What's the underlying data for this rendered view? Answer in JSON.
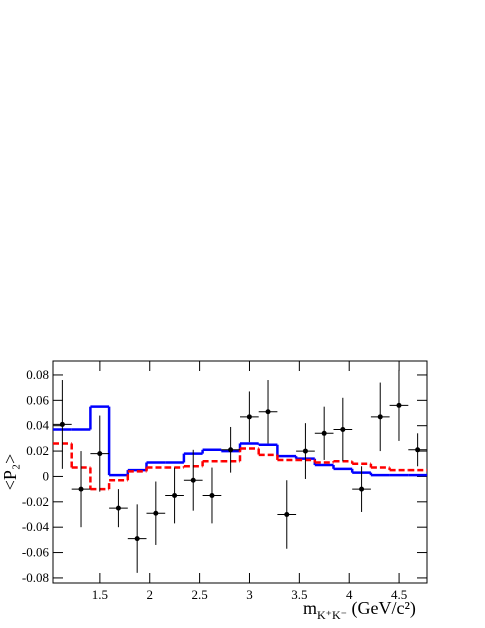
{
  "chart_data": {
    "type": "histogram-points",
    "ylabel": "<P₂>",
    "xlabel": {
      "main": "m",
      "sub": "K⁺K⁻",
      "rest": " (GeV/c²)"
    },
    "xlim": [
      1.03,
      4.78
    ],
    "ylim": [
      -0.084,
      0.091
    ],
    "xticks": [
      1.5,
      2,
      2.5,
      3,
      3.5,
      4,
      4.5
    ],
    "yticks": [
      -0.08,
      -0.06,
      -0.04,
      -0.02,
      0,
      0.02,
      0.04,
      0.06,
      0.08
    ],
    "bins": [
      1.03,
      1.2175,
      1.405,
      1.5925,
      1.78,
      1.9675,
      2.155,
      2.3425,
      2.53,
      2.7175,
      2.905,
      3.0925,
      3.28,
      3.4675,
      3.655,
      3.8425,
      4.03,
      4.2175,
      4.405,
      4.5925,
      4.78
    ],
    "series": [
      {
        "color": "#0000ff",
        "style": "solid",
        "values": [
          0.037,
          0.037,
          0.055,
          0.001,
          0.005,
          0.011,
          0.011,
          0.018,
          0.021,
          0.02,
          0.026,
          0.025,
          0.016,
          0.014,
          0.009,
          0.006,
          0.003,
          0.001,
          0.001,
          0.001
        ]
      },
      {
        "color": "#ff0000",
        "style": "dashed",
        "values": [
          0.026,
          0.007,
          -0.01,
          -0.003,
          0.004,
          0.007,
          0.007,
          0.008,
          0.012,
          0.012,
          0.022,
          0.017,
          0.013,
          0.013,
          0.011,
          0.012,
          0.01,
          0.007,
          0.005,
          0.005
        ]
      }
    ],
    "points": {
      "color": "#000000",
      "x": [
        1.124,
        1.311,
        1.499,
        1.686,
        1.874,
        2.061,
        2.249,
        2.436,
        2.624,
        2.811,
        2.999,
        3.186,
        3.374,
        3.561,
        3.749,
        3.936,
        4.124,
        4.311,
        4.499,
        4.686
      ],
      "values": [
        0.041,
        -0.01,
        0.018,
        -0.025,
        -0.049,
        -0.029,
        -0.015,
        -0.003,
        -0.015,
        0.021,
        0.047,
        0.051,
        -0.03,
        0.02,
        0.034,
        0.037,
        -0.01,
        0.047,
        0.056,
        0.021
      ],
      "errors": [
        0.035,
        0.03,
        0.03,
        0.015,
        0.027,
        0.025,
        0.022,
        0.024,
        0.022,
        0.018,
        0.02,
        0.025,
        0.027,
        0.022,
        0.021,
        0.025,
        0.018,
        0.027,
        0.028,
        0.013
      ]
    }
  }
}
